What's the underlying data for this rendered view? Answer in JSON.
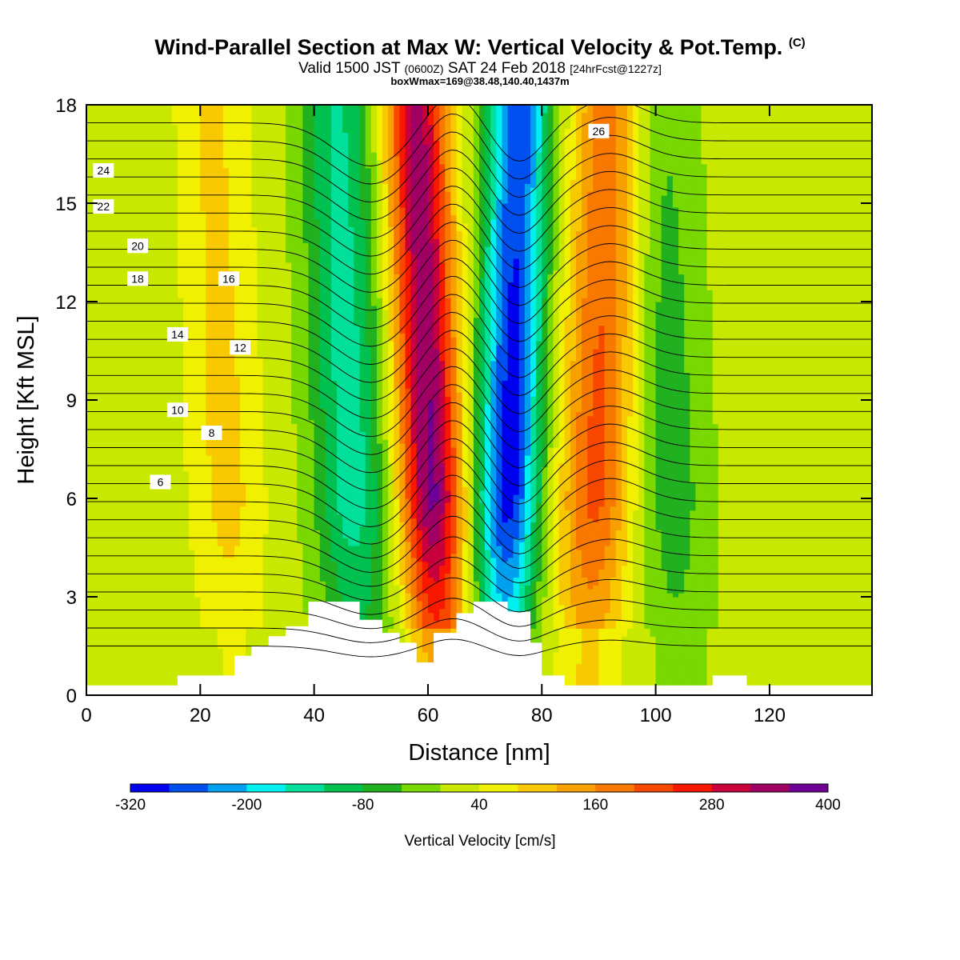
{
  "title": {
    "main": "Wind-Parallel Section at Max W: Vertical Velocity & Pot.Temp.",
    "copyright": "(C)",
    "valid_prefix": "Valid 1500 JST",
    "valid_utc": "(0600Z)",
    "valid_date": "SAT 24 Feb 2018",
    "valid_fcst": "[24hrFcst@1227z]",
    "box": "boxWmax=169@38.48,140.40,1437m"
  },
  "chart_data": {
    "type": "contour",
    "xlabel": "Distance [nm]",
    "ylabel": "Height [Kft MSL]",
    "xlim": [
      0,
      138
    ],
    "ylim": [
      0,
      18
    ],
    "x_ticks": [
      0,
      20,
      40,
      60,
      80,
      100,
      120
    ],
    "y_ticks": [
      0,
      3,
      6,
      9,
      12,
      15,
      18
    ],
    "colorbar": {
      "label": "Vertical Velocity [cm/s]",
      "levels": [
        -320,
        -280,
        -240,
        -200,
        -160,
        -120,
        -80,
        -40,
        0,
        40,
        80,
        120,
        160,
        200,
        240,
        280,
        320,
        360,
        400
      ],
      "tick_labels": [
        "-320",
        "-200",
        "-80",
        "40",
        "160",
        "280",
        "400"
      ],
      "colors": [
        "#0000f0",
        "#0050f0",
        "#00a0f0",
        "#00f0f0",
        "#00e09a",
        "#00c050",
        "#20b020",
        "#78d800",
        "#c8e800",
        "#f0f000",
        "#f8c800",
        "#f8a000",
        "#f87800",
        "#f84800",
        "#f81800",
        "#c8003c",
        "#a00064",
        "#6e0096"
      ]
    },
    "theta_contour_labels": [
      "6",
      "8",
      "10",
      "12",
      "14",
      "16",
      "18",
      "20",
      "22",
      "24",
      "26"
    ],
    "w_bands": [
      {
        "x_center_surface": 62,
        "x_center_top": 58,
        "w_max": 360,
        "kind": "updraft"
      },
      {
        "x_center_surface": 73,
        "x_center_top": 76,
        "w_min": -320,
        "kind": "downdraft"
      },
      {
        "x_center_surface": 48,
        "x_center_top": 44,
        "w_min": -160,
        "kind": "downdraft"
      },
      {
        "x_center_surface": 88,
        "x_center_top": 92,
        "w_max": 200,
        "kind": "updraft"
      },
      {
        "x_center_surface": 26,
        "x_center_top": 22,
        "w_max": 80,
        "kind": "updraft"
      },
      {
        "x_center_surface": 104,
        "x_center_top": 100,
        "w_min": -80,
        "kind": "downdraft"
      }
    ]
  }
}
